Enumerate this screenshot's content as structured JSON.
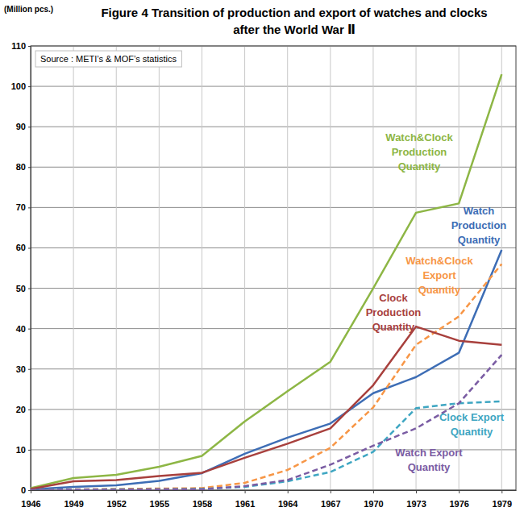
{
  "chart_data": {
    "type": "line",
    "title": "Figure 4  Transition of production and export of watches and clocks after the World War Ⅱ",
    "y_label": "(Million pcs.)",
    "annotation": "Source : METI’s & MOF’s statistics",
    "x": [
      1946,
      1949,
      1952,
      1955,
      1958,
      1961,
      1964,
      1967,
      1970,
      1973,
      1976,
      1979
    ],
    "xlim": [
      1946,
      1980
    ],
    "xticks": [
      1946,
      1949,
      1952,
      1955,
      1958,
      1961,
      1964,
      1967,
      1970,
      1973,
      1976,
      1979
    ],
    "ylim": [
      0,
      110
    ],
    "yticks": [
      0,
      10,
      20,
      30,
      40,
      50,
      60,
      70,
      80,
      90,
      100,
      110
    ],
    "grid": true,
    "series": [
      {
        "name": "Watch&Clock Production Quantity",
        "color": "#8db645",
        "line_style": "solid",
        "values": [
          0.5,
          3,
          3.8,
          5.8,
          8.5,
          17,
          24.5,
          31.8,
          50,
          68.7,
          71,
          103
        ]
      },
      {
        "name": "Watch Production Quantity",
        "color": "#3d6db5",
        "line_style": "solid",
        "values": [
          0.2,
          0.8,
          1.2,
          2.3,
          4.2,
          9,
          13,
          16.5,
          24,
          28,
          34,
          59.5
        ]
      },
      {
        "name": "Watch&Clock Export Quantity",
        "color": "#f79646",
        "line_style": "dashed",
        "values": [
          0,
          0.2,
          0.3,
          0.4,
          0.5,
          1.8,
          5,
          10.5,
          20.5,
          36,
          43,
          56
        ]
      },
      {
        "name": "Clock Production Quantity",
        "color": "#a8403d",
        "line_style": "solid",
        "values": [
          0.3,
          2.2,
          2.5,
          3.5,
          4.3,
          8,
          11.5,
          15.3,
          26,
          40.5,
          37,
          36
        ]
      },
      {
        "name": "Clock Export Quantity",
        "color": "#3ea6c2",
        "line_style": "dashed",
        "values": [
          0,
          0.1,
          0.2,
          0.2,
          0.3,
          0.8,
          2.2,
          4.5,
          9.5,
          20.3,
          21.5,
          22
        ]
      },
      {
        "name": "Watch Export Quantity",
        "color": "#7a5ca3",
        "line_style": "dashed",
        "values": [
          0,
          0.1,
          0.1,
          0.2,
          0.2,
          1,
          2.5,
          6.3,
          11,
          15.3,
          21.5,
          33.5
        ]
      }
    ]
  }
}
